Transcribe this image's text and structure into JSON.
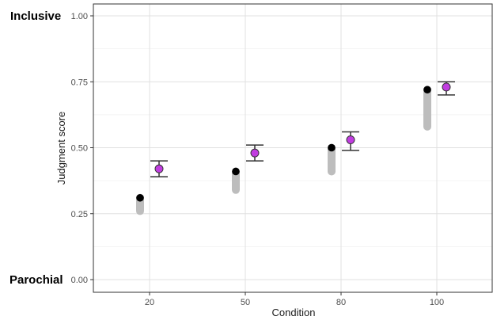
{
  "chart_data": {
    "type": "scatter",
    "title": "",
    "xlabel": "Condition",
    "ylabel": "Judgment score",
    "x_categories": [
      "20",
      "50",
      "80",
      "100"
    ],
    "y_ticks": [
      "0.00",
      "0.25",
      "0.50",
      "0.75",
      "1.00"
    ],
    "ylim": [
      0,
      1.0
    ],
    "grid": true,
    "side_labels": {
      "top": "Inclusive",
      "bottom": "Parochial"
    },
    "series": [
      {
        "marker": "black-point",
        "color": "#000000",
        "values": [
          0.31,
          0.41,
          0.5,
          0.72
        ]
      },
      {
        "marker": "purple-point-with-error-bar",
        "color": "#c13de0",
        "values": [
          0.42,
          0.48,
          0.53,
          0.73
        ],
        "error_low": [
          0.39,
          0.45,
          0.49,
          0.7
        ],
        "error_high": [
          0.45,
          0.51,
          0.56,
          0.75
        ]
      }
    ],
    "grey_bars": {
      "color": "#bdbdbd",
      "low": [
        0.26,
        0.34,
        0.41,
        0.58
      ],
      "high": [
        0.31,
        0.41,
        0.5,
        0.72
      ]
    }
  }
}
